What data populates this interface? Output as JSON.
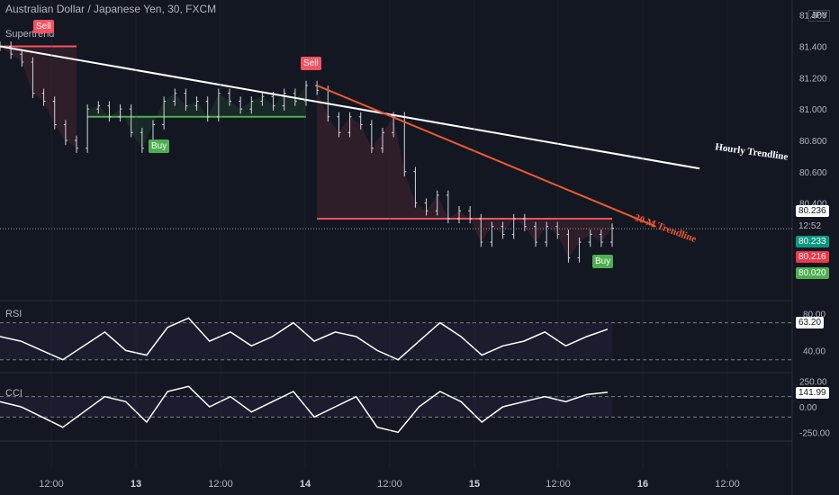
{
  "header": {
    "title": "Australian Dollar / Japanese Yen, 30, FXCM",
    "currency": "JPY",
    "indicator_label": "Supertrend"
  },
  "price_scale": {
    "ticks": [
      "81.600",
      "81.400",
      "81.200",
      "81.000",
      "80.800",
      "80.600",
      "80.400"
    ],
    "last_price": "80.236",
    "countdown": "12:52",
    "supertrend_value": "80.233",
    "red_level": "80.216",
    "green_level": "80.020"
  },
  "rsi": {
    "label": "RSI",
    "ticks": [
      "80.00",
      "40.00"
    ],
    "value": "63.20"
  },
  "cci": {
    "label": "CCI",
    "ticks": [
      "250.00",
      "0.00",
      "-250.00"
    ],
    "value": "141.99"
  },
  "time_axis": [
    "12:00",
    "13",
    "12:00",
    "14",
    "12:00",
    "15",
    "12:00",
    "16",
    "12:00"
  ],
  "annotations": {
    "hourly_trendline": "Hourly Trendline",
    "m30_trendline": "30 M Trendline"
  },
  "signals": [
    {
      "label": "Sell",
      "type": "sell"
    },
    {
      "label": "Buy",
      "type": "buy"
    },
    {
      "label": "Sell",
      "type": "sell"
    },
    {
      "label": "Buy",
      "type": "buy"
    }
  ],
  "colors": {
    "background": "#131722",
    "bull": "#4caf50",
    "bear": "#f7525f",
    "hourly_trendline": "#ffffff",
    "m30_trendline": "#f0582e",
    "price_label": "#ffffff"
  },
  "chart_data": {
    "type": "line",
    "symbol": "AUDJPY",
    "timeframe": "30",
    "x": [
      "12:00",
      "13",
      "12:00",
      "14",
      "12:00",
      "15",
      "12:00",
      "16",
      "12:00"
    ],
    "price_close": [
      81.4,
      81.35,
      81.3,
      81.1,
      81.05,
      80.9,
      80.8,
      80.75,
      81.0,
      81.02,
      80.95,
      81.0,
      80.85,
      80.75,
      80.9,
      81.05,
      81.1,
      81.02,
      81.05,
      80.95,
      81.1,
      81.05,
      81.0,
      81.05,
      81.08,
      81.02,
      81.1,
      81.05,
      81.15,
      81.12,
      80.95,
      80.85,
      80.95,
      80.9,
      80.75,
      80.85,
      80.95,
      80.6,
      80.4,
      80.35,
      80.45,
      80.3,
      80.35,
      80.3,
      80.15,
      80.25,
      80.2,
      80.3,
      80.25,
      80.15,
      80.25,
      80.2,
      80.05,
      80.15,
      80.2,
      80.15,
      80.24
    ],
    "supertrend": [
      {
        "from": 0,
        "to": 7,
        "trend": "bear",
        "level": 81.4
      },
      {
        "from": 8,
        "to": 28,
        "trend": "bull",
        "level": 80.95
      },
      {
        "from": 29,
        "to": 56,
        "trend": "bear",
        "level": 80.3
      }
    ],
    "trendlines": [
      {
        "name": "Hourly Trendline",
        "from": [
          0,
          81.4
        ],
        "to": [
          64,
          80.62
        ]
      },
      {
        "name": "30 M Trendline",
        "from": [
          29,
          81.15
        ],
        "to": [
          60,
          80.25
        ]
      }
    ],
    "rsi_values": [
      55,
      50,
      40,
      30,
      45,
      60,
      40,
      35,
      65,
      75,
      50,
      60,
      45,
      55,
      70,
      50,
      60,
      55,
      40,
      30,
      50,
      70,
      55,
      35,
      45,
      50,
      60,
      45,
      55,
      63
    ],
    "cci_values": [
      50,
      0,
      -100,
      -200,
      -50,
      100,
      50,
      -150,
      150,
      200,
      0,
      100,
      -50,
      50,
      150,
      -100,
      0,
      100,
      -200,
      -250,
      0,
      150,
      50,
      -150,
      0,
      50,
      100,
      50,
      120,
      142
    ],
    "ylim_price": [
      79.8,
      81.65
    ],
    "ylim_rsi": [
      20,
      90
    ],
    "ylim_cci": [
      -300,
      300
    ]
  }
}
